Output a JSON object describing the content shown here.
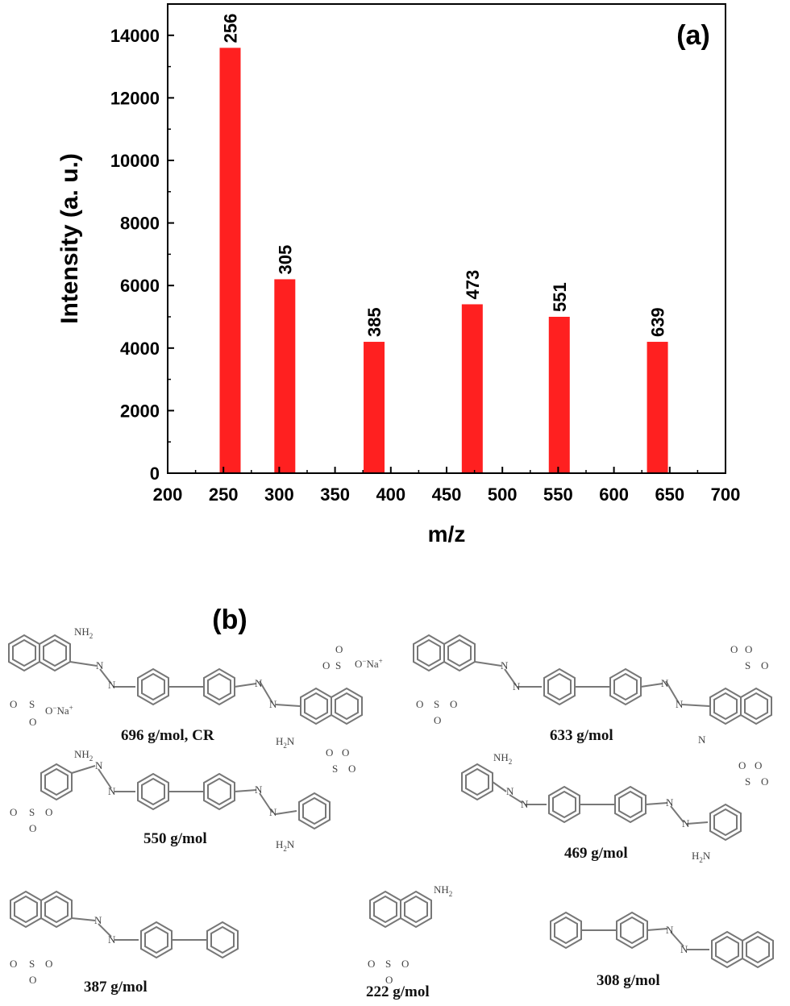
{
  "chart_data": {
    "type": "bar",
    "panel_label": "(a)",
    "xlabel": "m/z",
    "ylabel": "Intensity  (a. u.)",
    "xlim": [
      200,
      700
    ],
    "ylim": [
      0,
      15000
    ],
    "xticks": [
      200,
      250,
      300,
      350,
      400,
      450,
      500,
      550,
      600,
      650,
      700
    ],
    "yticks": [
      0,
      2000,
      4000,
      6000,
      8000,
      10000,
      12000,
      14000
    ],
    "bar_color": "#ff2020",
    "grid": false,
    "bars": [
      {
        "x": 256,
        "y": 13600,
        "label": "256"
      },
      {
        "x": 305,
        "y": 6200,
        "label": "305"
      },
      {
        "x": 385,
        "y": 4200,
        "label": "385"
      },
      {
        "x": 473,
        "y": 5400,
        "label": "473"
      },
      {
        "x": 551,
        "y": 5000,
        "label": "551"
      },
      {
        "x": 639,
        "y": 4200,
        "label": "639"
      }
    ]
  },
  "structures": {
    "panel_label": "(b)",
    "atoms": {
      "nh2": "NH",
      "h2n": "H",
      "n": "N",
      "s": "S",
      "o": "O",
      "na": "Na",
      "sub2": "2",
      "minus": "−",
      "plus": "+"
    },
    "molecules": [
      {
        "label": "696 g/mol, CR"
      },
      {
        "label": "633 g/mol"
      },
      {
        "label": "550 g/mol"
      },
      {
        "label": "469 g/mol"
      },
      {
        "label": "387 g/mol"
      },
      {
        "label": "222 g/mol"
      },
      {
        "label": "308 g/mol"
      }
    ]
  }
}
